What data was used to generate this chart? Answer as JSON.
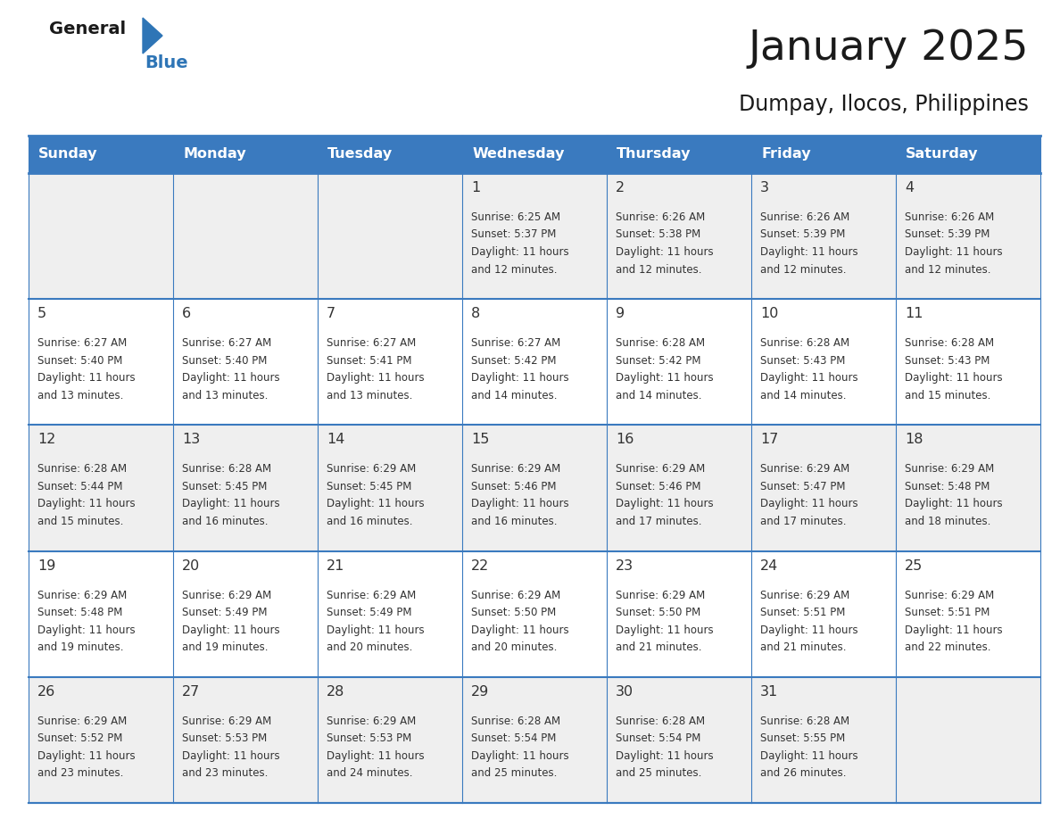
{
  "title": "January 2025",
  "subtitle": "Dumpay, Ilocos, Philippines",
  "days_of_week": [
    "Sunday",
    "Monday",
    "Tuesday",
    "Wednesday",
    "Thursday",
    "Friday",
    "Saturday"
  ],
  "header_bg": "#3a7abf",
  "header_text": "#FFFFFF",
  "cell_bg_white": "#FFFFFF",
  "cell_bg_gray": "#EFEFEF",
  "line_color": "#3a7abf",
  "day_num_color": "#333333",
  "text_color": "#333333",
  "logo_general_color": "#1a1a1a",
  "logo_blue_color": "#2E75B6",
  "calendar": [
    [
      {
        "day": "",
        "sunrise": "",
        "sunset": "",
        "daylight": ""
      },
      {
        "day": "",
        "sunrise": "",
        "sunset": "",
        "daylight": ""
      },
      {
        "day": "",
        "sunrise": "",
        "sunset": "",
        "daylight": ""
      },
      {
        "day": "1",
        "sunrise": "6:25 AM",
        "sunset": "5:37 PM",
        "daylight": "11 hours and 12 minutes."
      },
      {
        "day": "2",
        "sunrise": "6:26 AM",
        "sunset": "5:38 PM",
        "daylight": "11 hours and 12 minutes."
      },
      {
        "day": "3",
        "sunrise": "6:26 AM",
        "sunset": "5:39 PM",
        "daylight": "11 hours and 12 minutes."
      },
      {
        "day": "4",
        "sunrise": "6:26 AM",
        "sunset": "5:39 PM",
        "daylight": "11 hours and 12 minutes."
      }
    ],
    [
      {
        "day": "5",
        "sunrise": "6:27 AM",
        "sunset": "5:40 PM",
        "daylight": "11 hours and 13 minutes."
      },
      {
        "day": "6",
        "sunrise": "6:27 AM",
        "sunset": "5:40 PM",
        "daylight": "11 hours and 13 minutes."
      },
      {
        "day": "7",
        "sunrise": "6:27 AM",
        "sunset": "5:41 PM",
        "daylight": "11 hours and 13 minutes."
      },
      {
        "day": "8",
        "sunrise": "6:27 AM",
        "sunset": "5:42 PM",
        "daylight": "11 hours and 14 minutes."
      },
      {
        "day": "9",
        "sunrise": "6:28 AM",
        "sunset": "5:42 PM",
        "daylight": "11 hours and 14 minutes."
      },
      {
        "day": "10",
        "sunrise": "6:28 AM",
        "sunset": "5:43 PM",
        "daylight": "11 hours and 14 minutes."
      },
      {
        "day": "11",
        "sunrise": "6:28 AM",
        "sunset": "5:43 PM",
        "daylight": "11 hours and 15 minutes."
      }
    ],
    [
      {
        "day": "12",
        "sunrise": "6:28 AM",
        "sunset": "5:44 PM",
        "daylight": "11 hours and 15 minutes."
      },
      {
        "day": "13",
        "sunrise": "6:28 AM",
        "sunset": "5:45 PM",
        "daylight": "11 hours and 16 minutes."
      },
      {
        "day": "14",
        "sunrise": "6:29 AM",
        "sunset": "5:45 PM",
        "daylight": "11 hours and 16 minutes."
      },
      {
        "day": "15",
        "sunrise": "6:29 AM",
        "sunset": "5:46 PM",
        "daylight": "11 hours and 16 minutes."
      },
      {
        "day": "16",
        "sunrise": "6:29 AM",
        "sunset": "5:46 PM",
        "daylight": "11 hours and 17 minutes."
      },
      {
        "day": "17",
        "sunrise": "6:29 AM",
        "sunset": "5:47 PM",
        "daylight": "11 hours and 17 minutes."
      },
      {
        "day": "18",
        "sunrise": "6:29 AM",
        "sunset": "5:48 PM",
        "daylight": "11 hours and 18 minutes."
      }
    ],
    [
      {
        "day": "19",
        "sunrise": "6:29 AM",
        "sunset": "5:48 PM",
        "daylight": "11 hours and 19 minutes."
      },
      {
        "day": "20",
        "sunrise": "6:29 AM",
        "sunset": "5:49 PM",
        "daylight": "11 hours and 19 minutes."
      },
      {
        "day": "21",
        "sunrise": "6:29 AM",
        "sunset": "5:49 PM",
        "daylight": "11 hours and 20 minutes."
      },
      {
        "day": "22",
        "sunrise": "6:29 AM",
        "sunset": "5:50 PM",
        "daylight": "11 hours and 20 minutes."
      },
      {
        "day": "23",
        "sunrise": "6:29 AM",
        "sunset": "5:50 PM",
        "daylight": "11 hours and 21 minutes."
      },
      {
        "day": "24",
        "sunrise": "6:29 AM",
        "sunset": "5:51 PM",
        "daylight": "11 hours and 21 minutes."
      },
      {
        "day": "25",
        "sunrise": "6:29 AM",
        "sunset": "5:51 PM",
        "daylight": "11 hours and 22 minutes."
      }
    ],
    [
      {
        "day": "26",
        "sunrise": "6:29 AM",
        "sunset": "5:52 PM",
        "daylight": "11 hours and 23 minutes."
      },
      {
        "day": "27",
        "sunrise": "6:29 AM",
        "sunset": "5:53 PM",
        "daylight": "11 hours and 23 minutes."
      },
      {
        "day": "28",
        "sunrise": "6:29 AM",
        "sunset": "5:53 PM",
        "daylight": "11 hours and 24 minutes."
      },
      {
        "day": "29",
        "sunrise": "6:28 AM",
        "sunset": "5:54 PM",
        "daylight": "11 hours and 25 minutes."
      },
      {
        "day": "30",
        "sunrise": "6:28 AM",
        "sunset": "5:54 PM",
        "daylight": "11 hours and 25 minutes."
      },
      {
        "day": "31",
        "sunrise": "6:28 AM",
        "sunset": "5:55 PM",
        "daylight": "11 hours and 26 minutes."
      },
      {
        "day": "",
        "sunrise": "",
        "sunset": "",
        "daylight": ""
      }
    ]
  ],
  "figsize": [
    11.88,
    9.18
  ],
  "dpi": 100
}
